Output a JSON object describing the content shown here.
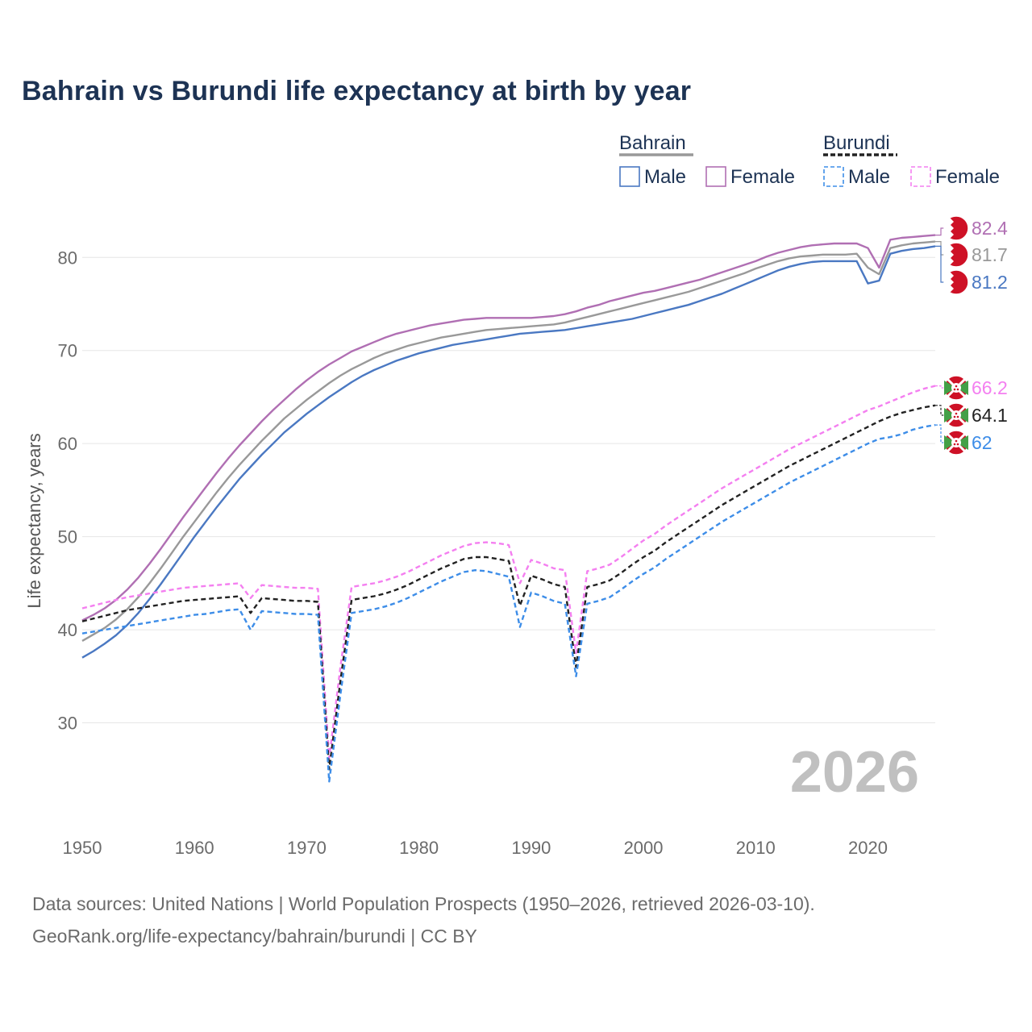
{
  "title": "Bahrain vs Burundi life expectancy at birth by year",
  "year_watermark": "2026",
  "sources": {
    "line1": "Data sources: United Nations | World Population Prospects (1950–2026, retrieved 2026-03-10).",
    "line2": "GeoRank.org/life-expectancy/bahrain/burundi | CC BY"
  },
  "legend": {
    "groups": [
      {
        "name": "Bahrain",
        "line_color": "#999999",
        "dashed": false,
        "items": [
          {
            "label": "Male",
            "color": "#4a78c2"
          },
          {
            "label": "Female",
            "color": "#b06fb3"
          }
        ]
      },
      {
        "name": "Burundi",
        "line_color": "#222222",
        "dashed": true,
        "items": [
          {
            "label": "Male",
            "color": "#3d8de8"
          },
          {
            "label": "Female",
            "color": "#f47ff0"
          }
        ]
      }
    ]
  },
  "end_labels": [
    {
      "text": "82.4",
      "color": "#b06fb3",
      "flag": "bahrain-flag-icon"
    },
    {
      "text": "81.7",
      "color": "#999999",
      "flag": "bahrain-flag-icon"
    },
    {
      "text": "81.2",
      "color": "#4a78c2",
      "flag": "bahrain-flag-icon"
    },
    {
      "text": "66.2",
      "color": "#f47ff0",
      "flag": "burundi-flag-icon"
    },
    {
      "text": "64.1",
      "color": "#222222",
      "flag": "burundi-flag-icon"
    },
    {
      "text": "62",
      "color": "#3d8de8",
      "flag": "burundi-flag-icon"
    }
  ],
  "chart_data": {
    "type": "line",
    "title": "Bahrain vs Burundi life expectancy at birth by year",
    "xlabel": "",
    "ylabel": "Life expectancy, years",
    "xlim": [
      1950,
      2026
    ],
    "ylim": [
      20,
      86
    ],
    "x_ticks": [
      1950,
      1960,
      1970,
      1980,
      1990,
      2000,
      2010,
      2020
    ],
    "y_ticks": [
      30,
      40,
      50,
      60,
      70,
      80
    ],
    "x": [
      1950,
      1951,
      1952,
      1953,
      1954,
      1955,
      1956,
      1957,
      1958,
      1959,
      1960,
      1961,
      1962,
      1963,
      1964,
      1965,
      1966,
      1967,
      1968,
      1969,
      1970,
      1971,
      1972,
      1973,
      1974,
      1975,
      1976,
      1977,
      1978,
      1979,
      1980,
      1981,
      1982,
      1983,
      1984,
      1985,
      1986,
      1987,
      1988,
      1989,
      1990,
      1991,
      1992,
      1993,
      1994,
      1995,
      1996,
      1997,
      1998,
      1999,
      2000,
      2001,
      2002,
      2003,
      2004,
      2005,
      2006,
      2007,
      2008,
      2009,
      2010,
      2011,
      2012,
      2013,
      2014,
      2015,
      2016,
      2017,
      2018,
      2019,
      2020,
      2021,
      2022,
      2023,
      2024,
      2025,
      2026
    ],
    "series": [
      {
        "name": "Bahrain Female",
        "country": "Bahrain",
        "sex": "Female",
        "color": "#b06fb3",
        "dashed": false,
        "values": [
          41.0,
          41.6,
          42.3,
          43.2,
          44.3,
          45.6,
          47.1,
          48.7,
          50.4,
          52.1,
          53.7,
          55.3,
          56.9,
          58.4,
          59.8,
          61.1,
          62.4,
          63.6,
          64.7,
          65.8,
          66.8,
          67.7,
          68.5,
          69.2,
          69.9,
          70.4,
          70.9,
          71.4,
          71.8,
          72.1,
          72.4,
          72.7,
          72.9,
          73.1,
          73.3,
          73.4,
          73.5,
          73.5,
          73.5,
          73.5,
          73.5,
          73.6,
          73.7,
          73.9,
          74.2,
          74.6,
          74.9,
          75.3,
          75.6,
          75.9,
          76.2,
          76.4,
          76.7,
          77.0,
          77.3,
          77.6,
          78.0,
          78.4,
          78.8,
          79.2,
          79.6,
          80.1,
          80.5,
          80.8,
          81.1,
          81.3,
          81.4,
          81.5,
          81.5,
          81.5,
          81.0,
          78.9,
          81.9,
          82.1,
          82.2,
          82.3,
          82.4
        ]
      },
      {
        "name": "Bahrain Total",
        "country": "Bahrain",
        "sex": "Total",
        "color": "#999999",
        "dashed": false,
        "values": [
          38.8,
          39.5,
          40.2,
          41.1,
          42.2,
          43.5,
          45.0,
          46.6,
          48.3,
          50.0,
          51.6,
          53.2,
          54.8,
          56.3,
          57.7,
          59.0,
          60.3,
          61.5,
          62.7,
          63.7,
          64.7,
          65.6,
          66.5,
          67.3,
          68.0,
          68.6,
          69.2,
          69.7,
          70.1,
          70.5,
          70.8,
          71.1,
          71.4,
          71.6,
          71.8,
          72.0,
          72.2,
          72.3,
          72.4,
          72.5,
          72.6,
          72.7,
          72.8,
          73.0,
          73.3,
          73.6,
          73.9,
          74.2,
          74.5,
          74.8,
          75.1,
          75.4,
          75.7,
          76.0,
          76.3,
          76.7,
          77.1,
          77.5,
          77.9,
          78.3,
          78.8,
          79.2,
          79.6,
          79.9,
          80.1,
          80.2,
          80.3,
          80.3,
          80.3,
          80.4,
          78.9,
          78.2,
          81.0,
          81.3,
          81.5,
          81.6,
          81.7
        ]
      },
      {
        "name": "Bahrain Male",
        "country": "Bahrain",
        "sex": "Male",
        "color": "#4a78c2",
        "dashed": false,
        "values": [
          37.0,
          37.7,
          38.5,
          39.4,
          40.5,
          41.8,
          43.3,
          44.9,
          46.6,
          48.3,
          50.0,
          51.6,
          53.2,
          54.7,
          56.2,
          57.5,
          58.8,
          60.0,
          61.2,
          62.2,
          63.2,
          64.1,
          65.0,
          65.8,
          66.6,
          67.3,
          67.9,
          68.4,
          68.9,
          69.3,
          69.7,
          70.0,
          70.3,
          70.6,
          70.8,
          71.0,
          71.2,
          71.4,
          71.6,
          71.8,
          71.9,
          72.0,
          72.1,
          72.2,
          72.4,
          72.6,
          72.8,
          73.0,
          73.2,
          73.4,
          73.7,
          74.0,
          74.3,
          74.6,
          74.9,
          75.3,
          75.7,
          76.1,
          76.6,
          77.1,
          77.6,
          78.1,
          78.6,
          79.0,
          79.3,
          79.5,
          79.6,
          79.6,
          79.6,
          79.6,
          77.2,
          77.5,
          80.4,
          80.7,
          80.9,
          81.0,
          81.2
        ]
      },
      {
        "name": "Burundi Female",
        "country": "Burundi",
        "sex": "Female",
        "color": "#f47ff0",
        "dashed": true,
        "values": [
          42.3,
          42.6,
          42.9,
          43.2,
          43.5,
          43.7,
          43.9,
          44.1,
          44.3,
          44.5,
          44.6,
          44.7,
          44.8,
          44.9,
          45.0,
          43.4,
          44.8,
          44.7,
          44.6,
          44.5,
          44.5,
          44.4,
          26.2,
          36.0,
          44.6,
          44.8,
          45.0,
          45.3,
          45.7,
          46.2,
          46.8,
          47.4,
          48.0,
          48.5,
          49.0,
          49.3,
          49.4,
          49.3,
          49.1,
          45.0,
          47.5,
          47.1,
          46.6,
          46.4,
          37.5,
          46.3,
          46.6,
          47.0,
          47.8,
          48.7,
          49.6,
          50.3,
          51.2,
          52.0,
          52.8,
          53.6,
          54.4,
          55.2,
          55.9,
          56.6,
          57.3,
          58.0,
          58.7,
          59.4,
          60.0,
          60.6,
          61.2,
          61.8,
          62.4,
          63.0,
          63.6,
          64.0,
          64.5,
          65.0,
          65.5,
          65.9,
          66.2
        ]
      },
      {
        "name": "Burundi Total",
        "country": "Burundi",
        "sex": "Total",
        "color": "#222222",
        "dashed": true,
        "values": [
          40.9,
          41.2,
          41.5,
          41.8,
          42.1,
          42.3,
          42.5,
          42.7,
          42.9,
          43.1,
          43.2,
          43.3,
          43.4,
          43.5,
          43.6,
          41.8,
          43.4,
          43.3,
          43.2,
          43.1,
          43.1,
          43.0,
          25.0,
          34.5,
          43.2,
          43.4,
          43.6,
          43.9,
          44.3,
          44.8,
          45.4,
          46.0,
          46.6,
          47.1,
          47.6,
          47.8,
          47.8,
          47.6,
          47.4,
          42.6,
          45.8,
          45.4,
          44.9,
          44.6,
          36.0,
          44.6,
          44.9,
          45.3,
          46.1,
          47.0,
          47.8,
          48.5,
          49.4,
          50.2,
          51.0,
          51.8,
          52.6,
          53.4,
          54.1,
          54.8,
          55.5,
          56.2,
          56.9,
          57.6,
          58.2,
          58.8,
          59.4,
          60.0,
          60.6,
          61.2,
          61.8,
          62.4,
          62.9,
          63.3,
          63.6,
          63.9,
          64.1
        ]
      },
      {
        "name": "Burundi Male",
        "country": "Burundi",
        "sex": "Male",
        "color": "#3d8de8",
        "dashed": true,
        "values": [
          39.6,
          39.8,
          40.0,
          40.2,
          40.4,
          40.6,
          40.8,
          41.0,
          41.2,
          41.4,
          41.6,
          41.7,
          41.9,
          42.1,
          42.2,
          40.0,
          42.0,
          41.9,
          41.8,
          41.7,
          41.7,
          41.6,
          23.7,
          33.0,
          41.8,
          42.0,
          42.2,
          42.5,
          42.9,
          43.4,
          44.0,
          44.6,
          45.2,
          45.7,
          46.2,
          46.4,
          46.3,
          46.0,
          45.7,
          40.3,
          44.0,
          43.6,
          43.1,
          42.8,
          35.0,
          42.8,
          43.1,
          43.5,
          44.3,
          45.2,
          46.0,
          46.7,
          47.6,
          48.4,
          49.2,
          50.0,
          50.8,
          51.6,
          52.3,
          53.0,
          53.7,
          54.4,
          55.1,
          55.8,
          56.4,
          57.0,
          57.6,
          58.2,
          58.8,
          59.4,
          60.0,
          60.5,
          60.7,
          61.0,
          61.5,
          61.8,
          62.0
        ]
      }
    ]
  }
}
